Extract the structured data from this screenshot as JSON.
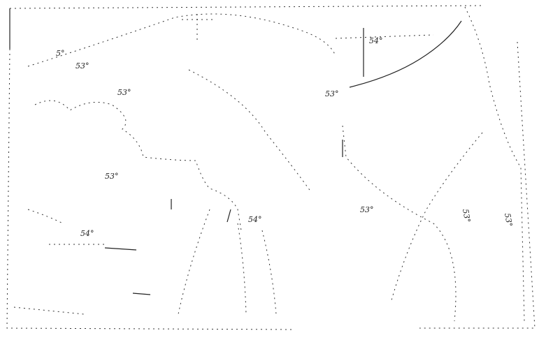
{
  "map": {
    "labels": [
      {
        "text": "5°"
      },
      {
        "text": "53°"
      },
      {
        "text": "53°"
      },
      {
        "text": "53°"
      },
      {
        "text": "54°"
      },
      {
        "text": "54°"
      },
      {
        "text": "53°"
      },
      {
        "text": "53°"
      },
      {
        "text": "54°"
      },
      {
        "text": "53°"
      },
      {
        "text": "53°"
      }
    ]
  }
}
